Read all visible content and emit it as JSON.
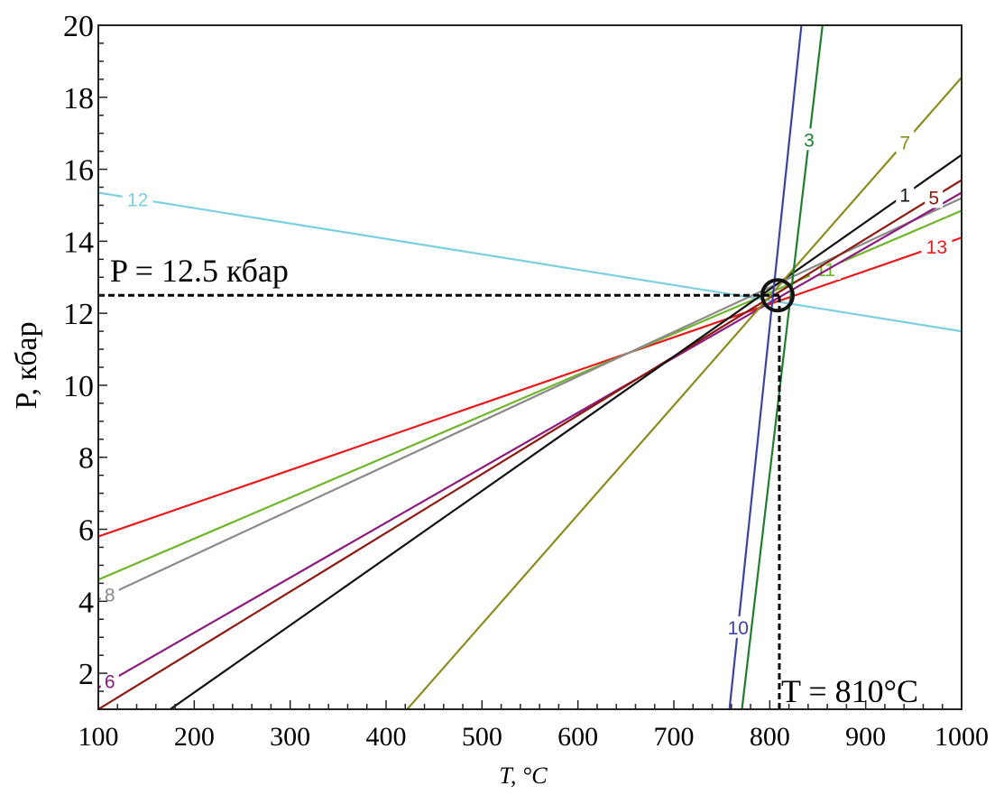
{
  "chart_data": {
    "type": "line",
    "xlabel": "T, °C",
    "ylabel": "P, кбар",
    "xlim": [
      100,
      1000
    ],
    "ylim": [
      1,
      20
    ],
    "xticks": [
      100,
      200,
      300,
      400,
      500,
      600,
      700,
      800,
      900,
      1000
    ],
    "yticks": [
      2,
      4,
      6,
      8,
      10,
      12,
      14,
      16,
      18,
      20
    ],
    "grid": false,
    "series": [
      {
        "name": "12",
        "color": "#7ccfe0",
        "points": [
          [
            100,
            15.35
          ],
          [
            1000,
            11.5
          ]
        ],
        "label_at": 141
      },
      {
        "name": "13",
        "color": "#e8191b",
        "points": [
          [
            100,
            5.8
          ],
          [
            1000,
            14.1
          ]
        ],
        "label_at": 974
      },
      {
        "name": "11",
        "color": "#6fb52c",
        "points": [
          [
            100,
            4.6
          ],
          [
            1000,
            14.85
          ]
        ],
        "label_at": 858
      },
      {
        "name": "8",
        "color": "#8a8a8a",
        "points": [
          [
            100,
            4.05
          ],
          [
            1000,
            15.2
          ]
        ],
        "label_at": 112
      },
      {
        "name": "6",
        "color": "#8b1a7e",
        "points": [
          [
            100,
            1.6
          ],
          [
            1000,
            15.35
          ]
        ],
        "label_at": 112
      },
      {
        "name": "5",
        "color": "#8b1a10",
        "points": [
          [
            100,
            1.0
          ],
          [
            1000,
            15.7
          ]
        ],
        "label_at": 971
      },
      {
        "name": "1",
        "color": "#111111",
        "points": [
          [
            175,
            1.0
          ],
          [
            1000,
            16.4
          ]
        ],
        "label_at": 941
      },
      {
        "name": "7",
        "color": "#8d8a1e",
        "points": [
          [
            422,
            1.0
          ],
          [
            1000,
            18.55
          ]
        ],
        "label_at": 941
      },
      {
        "name": "10",
        "color": "#3b43a0",
        "points": [
          [
            758,
            1.0
          ],
          [
            833,
            20
          ]
        ],
        "label_at": 767
      },
      {
        "name": "3",
        "color": "#1e7d2e",
        "points": [
          [
            771,
            1.0
          ],
          [
            855,
            20
          ]
        ],
        "label_at": 841
      }
    ],
    "annotations": {
      "pressure_text": "P = 12.5 кбар",
      "temperature_text": "T = 810°C",
      "intersection": {
        "T": 810,
        "P": 12.5
      }
    }
  }
}
